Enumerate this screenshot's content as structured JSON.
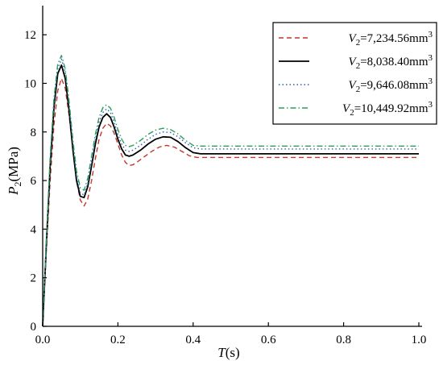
{
  "chart_data": {
    "type": "line",
    "xlabel": {
      "symbol": "T",
      "unit": "(s)"
    },
    "ylabel": {
      "symbol": "P",
      "sub": "2",
      "unit": "(MPa)"
    },
    "xlim": [
      0,
      1.0
    ],
    "ylim": [
      0,
      13
    ],
    "xticks": [
      0.0,
      0.2,
      0.4,
      0.6,
      0.8,
      1.0
    ],
    "xtick_labels": [
      "0.0",
      "0.2",
      "0.4",
      "0.6",
      "0.8",
      "1.0"
    ],
    "yticks": [
      0,
      2,
      4,
      6,
      8,
      10,
      12
    ],
    "ytick_labels": [
      "0",
      "2",
      "4",
      "6",
      "8",
      "10",
      "12"
    ],
    "grid": false,
    "legend_position": "top-right",
    "series": [
      {
        "name": "V2=7,234.56mm3",
        "label": {
          "symbol": "V",
          "sub": "2",
          "value": "=7,234.56mm",
          "sup": "3"
        },
        "color": "#c0392b",
        "dash": "dashed",
        "points": [
          [
            0,
            0
          ],
          [
            0.01,
            3.2
          ],
          [
            0.02,
            6.0
          ],
          [
            0.03,
            8.3
          ],
          [
            0.04,
            9.7
          ],
          [
            0.05,
            10.2
          ],
          [
            0.06,
            9.8
          ],
          [
            0.07,
            8.7
          ],
          [
            0.08,
            7.3
          ],
          [
            0.09,
            6.0
          ],
          [
            0.1,
            5.2
          ],
          [
            0.11,
            4.95
          ],
          [
            0.12,
            5.25
          ],
          [
            0.13,
            6.0
          ],
          [
            0.14,
            6.9
          ],
          [
            0.15,
            7.7
          ],
          [
            0.16,
            8.15
          ],
          [
            0.17,
            8.35
          ],
          [
            0.18,
            8.25
          ],
          [
            0.19,
            7.95
          ],
          [
            0.2,
            7.5
          ],
          [
            0.21,
            7.05
          ],
          [
            0.22,
            6.75
          ],
          [
            0.23,
            6.62
          ],
          [
            0.24,
            6.65
          ],
          [
            0.25,
            6.75
          ],
          [
            0.27,
            6.98
          ],
          [
            0.29,
            7.2
          ],
          [
            0.31,
            7.38
          ],
          [
            0.33,
            7.45
          ],
          [
            0.35,
            7.38
          ],
          [
            0.37,
            7.2
          ],
          [
            0.39,
            7.02
          ],
          [
            0.41,
            6.95
          ],
          [
            0.45,
            6.95
          ],
          [
            1.0,
            6.95
          ]
        ]
      },
      {
        "name": "V2=8,038.40mm3",
        "label": {
          "symbol": "V",
          "sub": "2",
          "value": "=8,038.40mm",
          "sup": "3"
        },
        "color": "#000000",
        "dash": "solid",
        "points": [
          [
            0,
            0
          ],
          [
            0.01,
            3.5
          ],
          [
            0.02,
            6.6
          ],
          [
            0.03,
            9.0
          ],
          [
            0.04,
            10.4
          ],
          [
            0.05,
            10.75
          ],
          [
            0.06,
            10.2
          ],
          [
            0.07,
            8.9
          ],
          [
            0.08,
            7.3
          ],
          [
            0.09,
            6.0
          ],
          [
            0.1,
            5.35
          ],
          [
            0.11,
            5.3
          ],
          [
            0.12,
            5.75
          ],
          [
            0.13,
            6.6
          ],
          [
            0.14,
            7.5
          ],
          [
            0.15,
            8.2
          ],
          [
            0.16,
            8.6
          ],
          [
            0.17,
            8.75
          ],
          [
            0.18,
            8.6
          ],
          [
            0.19,
            8.2
          ],
          [
            0.2,
            7.7
          ],
          [
            0.21,
            7.3
          ],
          [
            0.22,
            7.05
          ],
          [
            0.23,
            7.0
          ],
          [
            0.24,
            7.05
          ],
          [
            0.26,
            7.25
          ],
          [
            0.28,
            7.5
          ],
          [
            0.3,
            7.7
          ],
          [
            0.32,
            7.8
          ],
          [
            0.34,
            7.78
          ],
          [
            0.36,
            7.6
          ],
          [
            0.38,
            7.35
          ],
          [
            0.4,
            7.15
          ],
          [
            0.42,
            7.1
          ],
          [
            0.45,
            7.1
          ],
          [
            1.0,
            7.1
          ]
        ]
      },
      {
        "name": "V2=9,646.08mm3",
        "label": {
          "symbol": "V",
          "sub": "2",
          "value": "=9,646.08mm",
          "sup": "3"
        },
        "color": "#2d5fb5",
        "dash": "dotted",
        "points": [
          [
            0,
            0
          ],
          [
            0.01,
            3.6
          ],
          [
            0.02,
            6.8
          ],
          [
            0.03,
            9.2
          ],
          [
            0.04,
            10.6
          ],
          [
            0.05,
            11.0
          ],
          [
            0.06,
            10.45
          ],
          [
            0.07,
            9.1
          ],
          [
            0.08,
            7.5
          ],
          [
            0.09,
            6.2
          ],
          [
            0.1,
            5.5
          ],
          [
            0.11,
            5.4
          ],
          [
            0.12,
            5.9
          ],
          [
            0.13,
            6.8
          ],
          [
            0.14,
            7.7
          ],
          [
            0.15,
            8.4
          ],
          [
            0.16,
            8.8
          ],
          [
            0.17,
            8.95
          ],
          [
            0.18,
            8.8
          ],
          [
            0.19,
            8.4
          ],
          [
            0.2,
            7.9
          ],
          [
            0.21,
            7.5
          ],
          [
            0.22,
            7.25
          ],
          [
            0.23,
            7.2
          ],
          [
            0.24,
            7.25
          ],
          [
            0.26,
            7.45
          ],
          [
            0.28,
            7.7
          ],
          [
            0.3,
            7.9
          ],
          [
            0.32,
            8.0
          ],
          [
            0.34,
            7.98
          ],
          [
            0.36,
            7.8
          ],
          [
            0.38,
            7.55
          ],
          [
            0.4,
            7.35
          ],
          [
            0.42,
            7.3
          ],
          [
            0.45,
            7.3
          ],
          [
            1.0,
            7.3
          ]
        ]
      },
      {
        "name": "V2=10,449.92mm3",
        "label": {
          "symbol": "V",
          "sub": "2",
          "value": "=10,449.92mm",
          "sup": "3"
        },
        "color": "#2e9e5b",
        "dash": "dashdot",
        "points": [
          [
            0,
            0
          ],
          [
            0.01,
            3.7
          ],
          [
            0.02,
            7.0
          ],
          [
            0.03,
            9.4
          ],
          [
            0.04,
            10.8
          ],
          [
            0.05,
            11.15
          ],
          [
            0.06,
            10.6
          ],
          [
            0.07,
            9.3
          ],
          [
            0.08,
            7.7
          ],
          [
            0.09,
            6.4
          ],
          [
            0.1,
            5.7
          ],
          [
            0.11,
            5.6
          ],
          [
            0.12,
            6.1
          ],
          [
            0.13,
            7.0
          ],
          [
            0.14,
            7.9
          ],
          [
            0.15,
            8.6
          ],
          [
            0.16,
            9.0
          ],
          [
            0.17,
            9.12
          ],
          [
            0.18,
            8.98
          ],
          [
            0.19,
            8.6
          ],
          [
            0.2,
            8.1
          ],
          [
            0.21,
            7.7
          ],
          [
            0.22,
            7.45
          ],
          [
            0.23,
            7.4
          ],
          [
            0.24,
            7.45
          ],
          [
            0.26,
            7.65
          ],
          [
            0.28,
            7.9
          ],
          [
            0.3,
            8.08
          ],
          [
            0.32,
            8.15
          ],
          [
            0.34,
            8.1
          ],
          [
            0.36,
            7.92
          ],
          [
            0.38,
            7.65
          ],
          [
            0.4,
            7.45
          ],
          [
            0.42,
            7.42
          ],
          [
            0.45,
            7.42
          ],
          [
            1.0,
            7.42
          ]
        ]
      }
    ]
  }
}
